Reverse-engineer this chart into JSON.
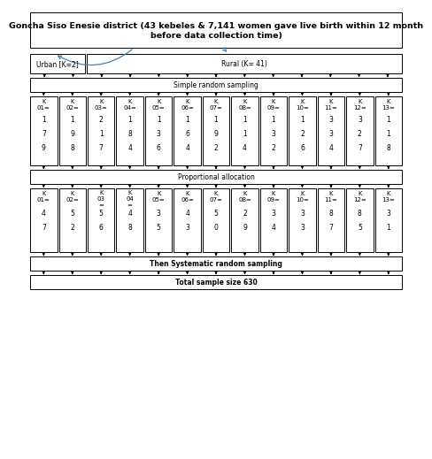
{
  "title_box": "Goncha Siso Enesie district (43 kebeles & 7,141 women gave live birth within 12 month\nbefore data collection time)",
  "urban_label": "Urban [K=2]",
  "rural_label": "Rural (K= 41)",
  "srs_label": "Simple random sampling",
  "prop_label": "Proportional allocation",
  "sys_label": "Then Systematic random sampling",
  "total_label": "Total sample size 630",
  "kebeles_row1": [
    {
      "label": "K\n01=",
      "values": [
        "1",
        "7",
        "9"
      ]
    },
    {
      "label": "K\n02=",
      "values": [
        "1",
        "9",
        "8"
      ]
    },
    {
      "label": "K\n03=",
      "values": [
        "2",
        "1",
        "7"
      ]
    },
    {
      "label": "K\n04=",
      "values": [
        "1",
        "8",
        "4"
      ]
    },
    {
      "label": "K\n05=",
      "values": [
        "1",
        "3",
        "6"
      ]
    },
    {
      "label": "K\n06=",
      "values": [
        "1",
        "6",
        "4"
      ]
    },
    {
      "label": "K\n07=",
      "values": [
        "1",
        "9",
        "2"
      ]
    },
    {
      "label": "K\n08=",
      "values": [
        "1",
        "1",
        "4"
      ]
    },
    {
      "label": "K\n09=",
      "values": [
        "1",
        "3",
        "2"
      ]
    },
    {
      "label": "K\n10=",
      "values": [
        "1",
        "2",
        "6"
      ]
    },
    {
      "label": "K\n11=",
      "values": [
        "3",
        "3",
        "4"
      ]
    },
    {
      "label": "K\n12=",
      "values": [
        "3",
        "2",
        "7"
      ]
    },
    {
      "label": "K\n13=",
      "values": [
        "1",
        "1",
        "8"
      ]
    }
  ],
  "kebeles_row2": [
    {
      "label": "K\n01=",
      "values": [
        "4",
        "7",
        ""
      ]
    },
    {
      "label": "K\n02=",
      "values": [
        "5",
        "2",
        ""
      ]
    },
    {
      "label": "K\n03\n=",
      "values": [
        "5",
        "6",
        ""
      ]
    },
    {
      "label": "K\n04\n=",
      "values": [
        "4",
        "8",
        ""
      ]
    },
    {
      "label": "K\n05=",
      "values": [
        "3",
        "5",
        ""
      ]
    },
    {
      "label": "K\n06=",
      "values": [
        "4",
        "3",
        ""
      ]
    },
    {
      "label": "K\n07=",
      "values": [
        "5",
        "0",
        ""
      ]
    },
    {
      "label": "K\n08=",
      "values": [
        "2",
        "9",
        ""
      ]
    },
    {
      "label": "K\n09=",
      "values": [
        "3",
        "4",
        ""
      ]
    },
    {
      "label": "K\n10=",
      "values": [
        "3",
        "3",
        ""
      ]
    },
    {
      "label": "K\n11=",
      "values": [
        "8",
        "7",
        ""
      ]
    },
    {
      "label": "K\n12=",
      "values": [
        "8",
        "5",
        ""
      ]
    },
    {
      "label": "K\n13=",
      "values": [
        "3",
        "1",
        ""
      ]
    }
  ],
  "bg_color": "#ffffff",
  "font_size": 5.5,
  "label_font_size": 5.0,
  "title_font_size": 6.8
}
